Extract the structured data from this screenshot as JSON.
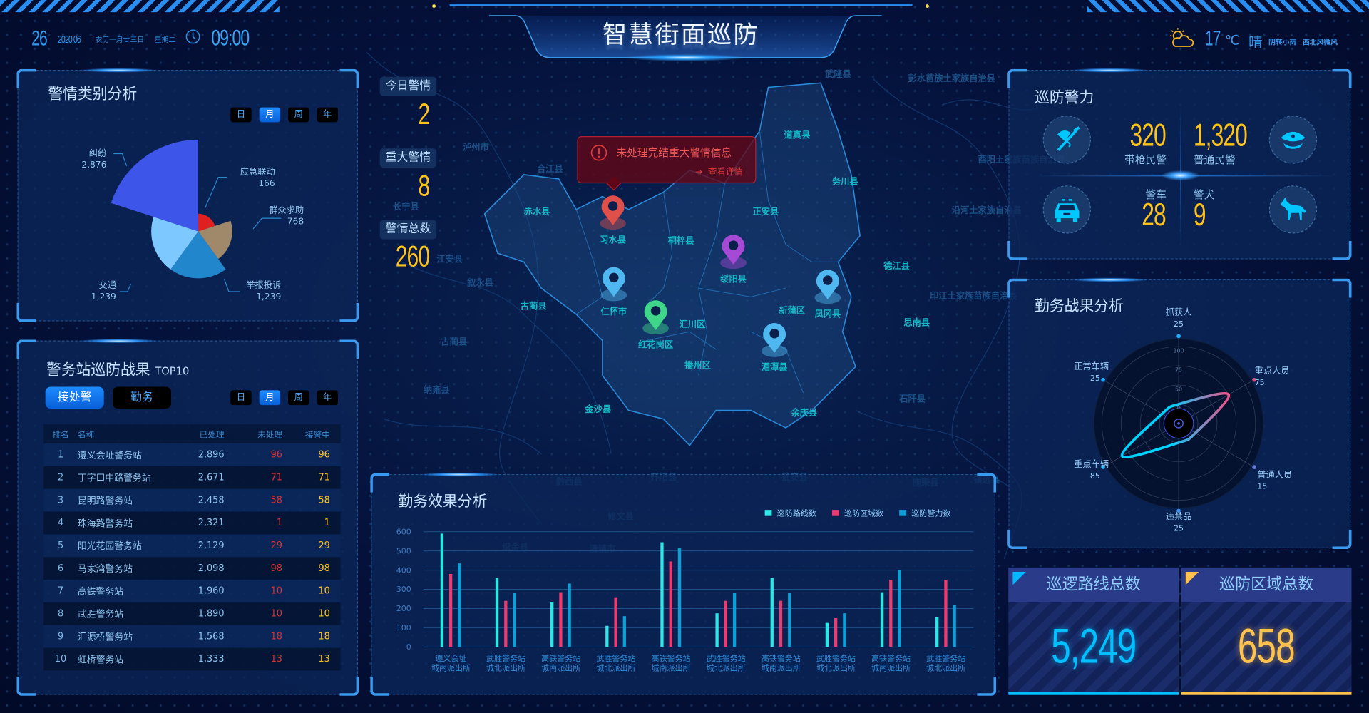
{
  "header": {
    "title": "智慧街面巡防",
    "day": "26",
    "year_month": "2020.06",
    "lunar": "农历一月廿三日",
    "weekday": "星期二",
    "time": "09:00",
    "temperature": "17",
    "temp_unit": "℃",
    "weather": "晴",
    "weather_detail": "阴转小雨",
    "wind": "西北风微风",
    "icons": {
      "clock": "clock-icon",
      "weather": "partly-cloudy-sun-icon"
    }
  },
  "period_options": [
    "日",
    "月",
    "周",
    "年"
  ],
  "period_selected": "月",
  "alert_category": {
    "title": "警情类别分析"
  },
  "station_results": {
    "title": "警务站巡防战果",
    "subtitle": "TOP10",
    "tabs": [
      "接处警",
      "勤务"
    ],
    "active_tab": "接处警",
    "columns": [
      "排名",
      "名称",
      "已处理",
      "未处理",
      "接警中"
    ],
    "rows": [
      [
        "1",
        "遵义会址警务站",
        "2,896",
        "96",
        "96"
      ],
      [
        "2",
        "丁字口中路警务站",
        "2,671",
        "71",
        "71"
      ],
      [
        "3",
        "昆明路警务站",
        "2,458",
        "58",
        "58"
      ],
      [
        "4",
        "珠海路警务站",
        "2,321",
        "1",
        "1"
      ],
      [
        "5",
        "阳光花园警务站",
        "2,129",
        "29",
        "29"
      ],
      [
        "6",
        "马家湾警务站",
        "2,098",
        "98",
        "98"
      ],
      [
        "7",
        "高铁警务站",
        "1,960",
        "10",
        "10"
      ],
      [
        "8",
        "武胜警务站",
        "1,890",
        "10",
        "10"
      ],
      [
        "9",
        "汇源桥警务站",
        "1,568",
        "18",
        "18"
      ],
      [
        "10",
        "虹桥警务站",
        "1,333",
        "13",
        "13"
      ]
    ]
  },
  "map": {
    "stats": [
      {
        "label": "今日警情",
        "value": "2"
      },
      {
        "label": "重大警情",
        "value": "8"
      },
      {
        "label": "警情总数",
        "value": "260"
      }
    ],
    "alert": {
      "message": "未处理完结重大警情信息",
      "link": "查看详情"
    },
    "regions": [
      "赤水县",
      "习水县",
      "桐梓县",
      "正安县",
      "道真县",
      "务川县",
      "绥阳县",
      "仁怀市",
      "红花岗区",
      "汇川区",
      "新蒲区",
      "凤冈县",
      "湄潭县",
      "播州区",
      "余庆县",
      "德江县",
      "思南县",
      "古蔺县",
      "金沙县"
    ],
    "faint_regions": [
      "泸州市",
      "合江县",
      "长宁县",
      "叙永县",
      "江安县",
      "印江土家族苗族自治县",
      "石阡县",
      "沿河土家族自治县",
      "酉阳土家族苗族自治县",
      "彭水苗族土家族自治县",
      "武隆县",
      "黔西县",
      "开阳县",
      "瓮安县",
      "施秉县",
      "镇远县",
      "修文县",
      "织金县",
      "清镇市",
      "古蔺县",
      "纳雍县"
    ],
    "pins": [
      {
        "region": "习水县",
        "color": "#e0504a"
      },
      {
        "region": "仁怀市",
        "color": "#4fb8f0"
      },
      {
        "region": "红花岗区",
        "color": "#3fd68a"
      },
      {
        "region": "绥阳县",
        "color": "#a64ad6"
      },
      {
        "region": "凤冈县",
        "color": "#4fb8f0"
      },
      {
        "region": "湄潭县",
        "color": "#4fb8f0"
      }
    ]
  },
  "patrol_force": {
    "title": "巡防警力",
    "items": [
      {
        "label": "带枪民警",
        "value": "320",
        "icon": "armed-police-icon"
      },
      {
        "label": "普通民警",
        "value": "1,320",
        "icon": "police-cap-icon"
      },
      {
        "label": "警车",
        "value": "28",
        "icon": "police-car-icon"
      },
      {
        "label": "警犬",
        "value": "9",
        "icon": "police-dog-icon"
      }
    ]
  },
  "totals": [
    {
      "label": "巡逻路线总数",
      "value": "5,249",
      "color": "#00c0ff"
    },
    {
      "label": "巡防区域总数",
      "value": "658",
      "color": "#ffc34d"
    }
  ],
  "chart_data": [
    {
      "type": "pie",
      "rose": true,
      "title": "警情类别分析",
      "slices": [
        {
          "name": "应急联动",
          "value": 166,
          "color": "#e02020"
        },
        {
          "name": "群众求助",
          "value": 768,
          "color": "#a0886a"
        },
        {
          "name": "举报投诉",
          "value": 1239,
          "color": "#2286cc"
        },
        {
          "name": "交通",
          "value": 1239,
          "color": "#7cc8ff"
        },
        {
          "name": "纠纷",
          "value": 2876,
          "color": "#3d55e8"
        }
      ]
    },
    {
      "type": "bar",
      "title": "勤务效果分析",
      "ylim": [
        0,
        600
      ],
      "yticks": [
        0,
        100,
        200,
        300,
        400,
        500,
        600
      ],
      "grid": true,
      "legend": "top-right",
      "categories": [
        "遵义会址\n城南派出所",
        "武胜警务站\n城北派出所",
        "高铁警务站\n城南派出所",
        "武胜警务站\n城北派出所",
        "高铁警务站\n城南派出所",
        "武胜警务站\n城北派出所",
        "高铁警务站\n城南派出所",
        "武胜警务站\n城北派出所",
        "高铁警务站\n城南派出所",
        "武胜警务站\n城北派出所"
      ],
      "series": [
        {
          "name": "巡防路线数",
          "color": "#2ee6e6",
          "values": [
            590,
            360,
            235,
            110,
            545,
            175,
            360,
            125,
            285,
            155
          ]
        },
        {
          "name": "巡防区域数",
          "color": "#ee3a6e",
          "values": [
            380,
            240,
            285,
            255,
            445,
            240,
            240,
            150,
            350,
            350
          ]
        },
        {
          "name": "巡防警力数",
          "color": "#0aa0d8",
          "values": [
            435,
            280,
            330,
            160,
            515,
            280,
            280,
            175,
            400,
            220
          ]
        }
      ]
    },
    {
      "type": "radar",
      "title": "勤务战果分析",
      "rticks": [
        25,
        50,
        75,
        100
      ],
      "max": 100,
      "axes": [
        {
          "name": "抓获人",
          "value": 25
        },
        {
          "name": "重点人员",
          "value": 75
        },
        {
          "name": "普通人员",
          "value": 15
        },
        {
          "name": "违禁品",
          "value": 25
        },
        {
          "name": "重点车辆",
          "value": 85
        },
        {
          "name": "正常车辆",
          "value": 25
        }
      ]
    }
  ]
}
